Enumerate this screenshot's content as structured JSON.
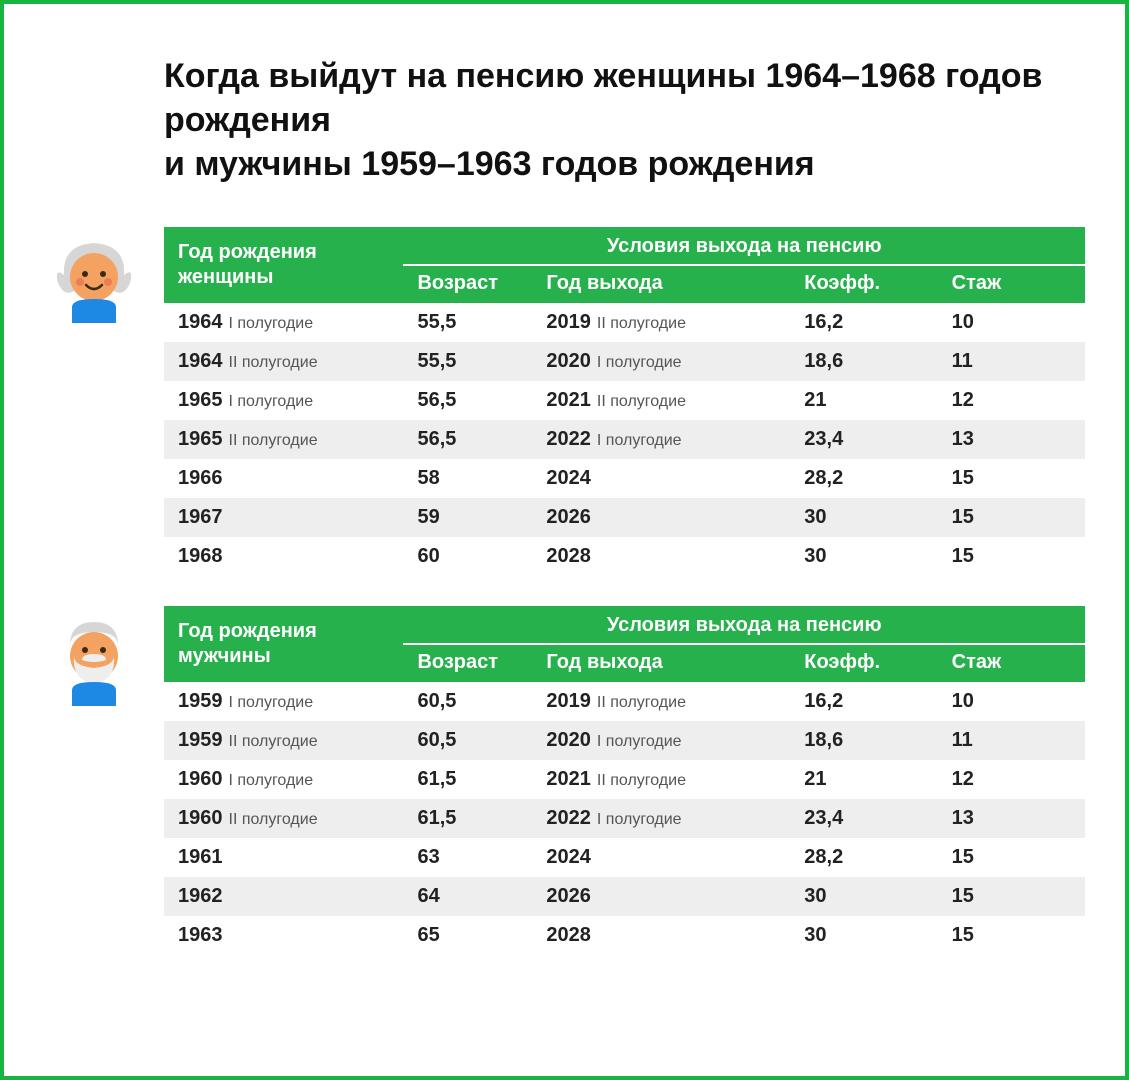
{
  "title_line1": "Когда выйдут на пенсию женщины 1964–1968 годов рождения",
  "title_line2": "и мужчины 1959–1963 годов рождения",
  "colors": {
    "frame_border": "#17b440",
    "header_bg": "#26b14c",
    "header_text": "#ffffff",
    "row_even_bg": "#eeeeee",
    "row_odd_bg": "#ffffff",
    "text": "#222222"
  },
  "avatar_woman": {
    "skin": "#f4a261",
    "hair": "#d6d6d6",
    "shirt": "#1e88e5",
    "blush": "#e76f51"
  },
  "avatar_man": {
    "skin": "#f4a261",
    "hair": "#d6d6d6",
    "beard": "#eeeeee",
    "shirt": "#1e88e5"
  },
  "headers": {
    "group_title": "Условия выхода на пенсию",
    "age": "Возраст",
    "exit_year": "Год выхода",
    "coef": "Коэфф.",
    "experience": "Стаж"
  },
  "woman": {
    "birth_header_l1": "Год рождения",
    "birth_header_l2": "женщины",
    "rows": [
      {
        "birth_year": "1964",
        "birth_half": "I полугодие",
        "age": "55,5",
        "exit_year": "2019",
        "exit_half": "II полугодие",
        "coef": "16,2",
        "exp": "10"
      },
      {
        "birth_year": "1964",
        "birth_half": "II полугодие",
        "age": "55,5",
        "exit_year": "2020",
        "exit_half": "I полугодие",
        "coef": "18,6",
        "exp": "11"
      },
      {
        "birth_year": "1965",
        "birth_half": "I полугодие",
        "age": "56,5",
        "exit_year": "2021",
        "exit_half": "II полугодие",
        "coef": "21",
        "exp": "12"
      },
      {
        "birth_year": "1965",
        "birth_half": "II полугодие",
        "age": "56,5",
        "exit_year": "2022",
        "exit_half": "I полугодие",
        "coef": "23,4",
        "exp": "13"
      },
      {
        "birth_year": "1966",
        "birth_half": "",
        "age": "58",
        "exit_year": "2024",
        "exit_half": "",
        "coef": "28,2",
        "exp": "15"
      },
      {
        "birth_year": "1967",
        "birth_half": "",
        "age": "59",
        "exit_year": "2026",
        "exit_half": "",
        "coef": "30",
        "exp": "15"
      },
      {
        "birth_year": "1968",
        "birth_half": "",
        "age": "60",
        "exit_year": "2028",
        "exit_half": "",
        "coef": "30",
        "exp": "15"
      }
    ]
  },
  "man": {
    "birth_header_l1": "Год рождения",
    "birth_header_l2": "мужчины",
    "rows": [
      {
        "birth_year": "1959",
        "birth_half": "I полугодие",
        "age": "60,5",
        "exit_year": "2019",
        "exit_half": "II полугодие",
        "coef": "16,2",
        "exp": "10"
      },
      {
        "birth_year": "1959",
        "birth_half": "II полугодие",
        "age": "60,5",
        "exit_year": "2020",
        "exit_half": "I полугодие",
        "coef": "18,6",
        "exp": "11"
      },
      {
        "birth_year": "1960",
        "birth_half": "I полугодие",
        "age": "61,5",
        "exit_year": "2021",
        "exit_half": "II полугодие",
        "coef": "21",
        "exp": "12"
      },
      {
        "birth_year": "1960",
        "birth_half": "II полугодие",
        "age": "61,5",
        "exit_year": "2022",
        "exit_half": "I полугодие",
        "coef": "23,4",
        "exp": "13"
      },
      {
        "birth_year": "1961",
        "birth_half": "",
        "age": "63",
        "exit_year": "2024",
        "exit_half": "",
        "coef": "28,2",
        "exp": "15"
      },
      {
        "birth_year": "1962",
        "birth_half": "",
        "age": "64",
        "exit_year": "2026",
        "exit_half": "",
        "coef": "30",
        "exp": "15"
      },
      {
        "birth_year": "1963",
        "birth_half": "",
        "age": "65",
        "exit_year": "2028",
        "exit_half": "",
        "coef": "30",
        "exp": "15"
      }
    ]
  }
}
